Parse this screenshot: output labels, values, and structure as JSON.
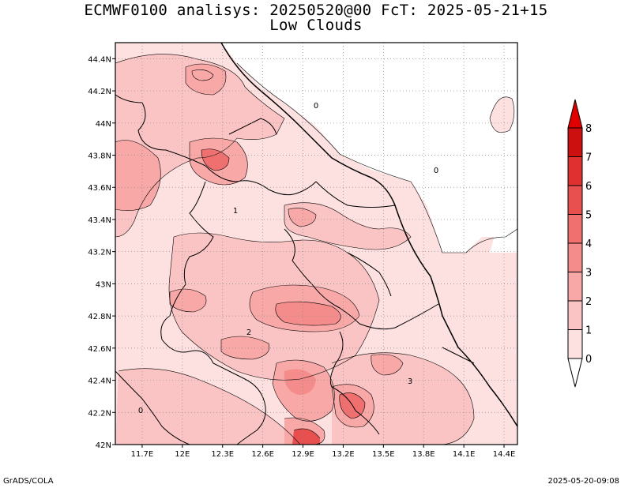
{
  "title_line1": "ECMWF0100 analisys: 20250520@00 FcT: 2025-05-21+15",
  "title_line2": "Low Clouds",
  "footer_left": "GrADS/COLA",
  "footer_right": "2025-05-20-09:08",
  "map": {
    "lon_range": [
      11.5,
      14.5
    ],
    "lat_range": [
      42.0,
      44.5
    ],
    "x_ticks": [
      "11.7E",
      "12E",
      "12.3E",
      "12.6E",
      "12.9E",
      "13.2E",
      "13.5E",
      "13.8E",
      "14.1E",
      "14.4E"
    ],
    "y_ticks": [
      "42N",
      "42.2N",
      "42.4N",
      "42.6N",
      "42.8N",
      "43N",
      "43.2N",
      "43.4N",
      "43.6N",
      "43.8N",
      "44N",
      "44.2N",
      "44.4N"
    ],
    "contour_labels": [
      "0",
      "0",
      "0",
      "1",
      "2",
      "3"
    ],
    "grid": true
  },
  "colorbar": {
    "levels": [
      "0",
      "1",
      "2",
      "3",
      "4",
      "5",
      "6",
      "7",
      "8"
    ],
    "colors": [
      "#ffffff",
      "#fde0e0",
      "#fbc4c4",
      "#f9a8a8",
      "#f58c8c",
      "#f07070",
      "#e85050",
      "#e03030",
      "#cc1010",
      "#e00000"
    ]
  }
}
